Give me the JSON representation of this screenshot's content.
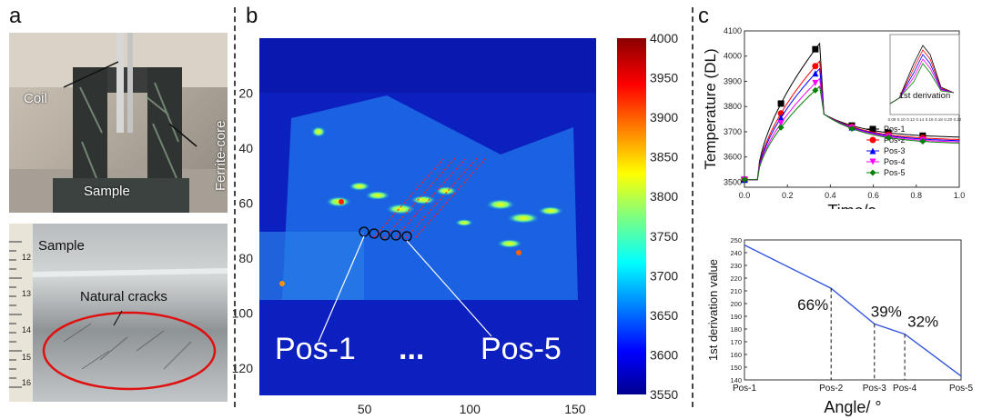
{
  "panel_a": {
    "letter": "a",
    "top_labels": {
      "coil": "Coil",
      "ferrite": "Ferrite-core",
      "sample": "Sample"
    },
    "bottom_labels": {
      "sample": "Sample",
      "cracks": "Natural cracks"
    },
    "ruler_numbers": [
      "12",
      "13",
      "14",
      "15",
      "16"
    ]
  },
  "panel_b": {
    "letter": "b",
    "pos_start": "Pos-1",
    "dots": "...",
    "pos_end": "Pos-5",
    "colors": {
      "low": "#00008f",
      "high": "#8b0000"
    }
  },
  "panel_c": {
    "letter": "c",
    "ratios": [
      "66%",
      "39%",
      "32%"
    ]
  },
  "chart_data": [
    {
      "type": "heatmap",
      "title": "",
      "x_ticks": [
        "50",
        "100",
        "150"
      ],
      "y_ticks": [
        "20",
        "40",
        "60",
        "80",
        "100",
        "120"
      ],
      "colorbar_ticks": [
        "4000",
        "3950",
        "3900",
        "3850",
        "3800",
        "3750",
        "3700",
        "3650",
        "3600",
        "3550"
      ],
      "colorbar_range": [
        3550,
        4000
      ],
      "xlim": [
        0,
        160
      ],
      "ylim": [
        0,
        130
      ]
    },
    {
      "type": "line",
      "xlabel": "Time/s",
      "ylabel": "Temperature (DL)",
      "xlim": [
        0,
        1.0
      ],
      "ylim": [
        3480,
        4100
      ],
      "x_ticks": [
        "0.0",
        "0.2",
        "0.4",
        "0.6",
        "0.8",
        "1.0"
      ],
      "y_ticks": [
        "3500",
        "3600",
        "3700",
        "3800",
        "3900",
        "4000",
        "4100"
      ],
      "legend": [
        "Pos-1",
        "Pos-2",
        "Pos-3",
        "Pos-4",
        "Pos-5"
      ],
      "legend_placement": "center-right",
      "series_colors": [
        "#000000",
        "#ff0000",
        "#0000ff",
        "#ff00ff",
        "#008000"
      ],
      "heat_peak": [
        4050,
        3980,
        3950,
        3910,
        3880
      ],
      "cool_end": [
        3675,
        3665,
        3660,
        3655,
        3650
      ],
      "inset": {
        "label": "1st derivation",
        "x_ticks": [
          "0.08",
          "0.10",
          "0.12",
          "0.14",
          "0.16",
          "0.18",
          "0.20",
          "0.22"
        ]
      }
    },
    {
      "type": "line",
      "xlabel": "Angle/ °",
      "ylabel": "1st derivation value",
      "categories": [
        "Pos-1",
        "Pos-2",
        "Pos-3",
        "Pos-4",
        "Pos-5"
      ],
      "values": [
        246,
        212,
        184,
        176,
        143
      ],
      "ylim": [
        140,
        250
      ],
      "y_ticks": [
        "140",
        "150",
        "160",
        "170",
        "180",
        "190",
        "200",
        "210",
        "220",
        "230",
        "240",
        "250"
      ],
      "color": "#3355dd"
    }
  ]
}
